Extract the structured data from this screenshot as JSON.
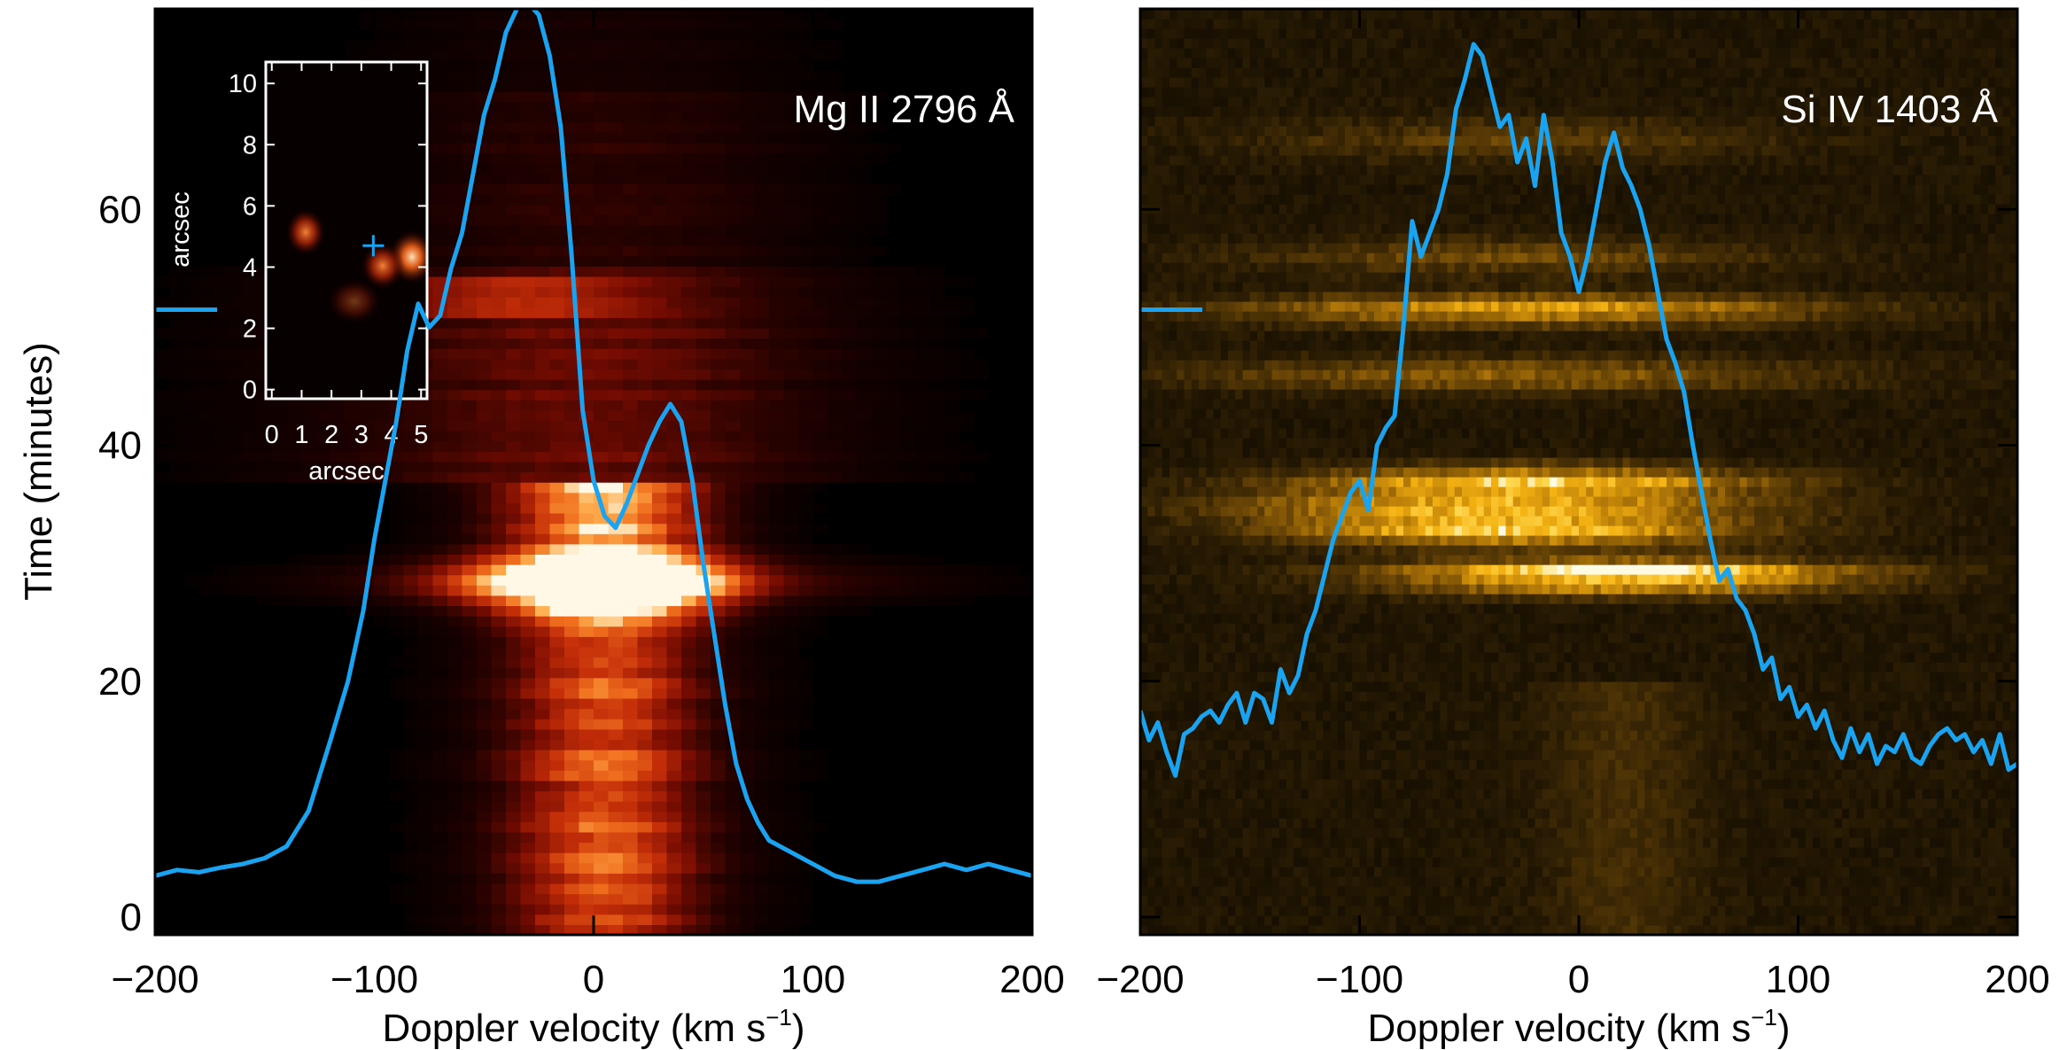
{
  "colors": {
    "profile": "#1aa3f0",
    "axis": "#000000",
    "panel_bg": "#000000",
    "inset_axis": "#ffffff"
  },
  "y_axis": {
    "label": "Time (minutes)",
    "ticks": [
      0,
      20,
      40,
      60
    ],
    "range": [
      -1.5,
      77
    ]
  },
  "chart_data": [
    {
      "type": "heatmap",
      "panel": "left",
      "colormap": "red-temperature",
      "annotation": "Mg II 2796 Å",
      "xlabel_main": "Doppler velocity (km s",
      "xlabel_sup": "−1",
      "xlabel_close": ")",
      "xlim": [
        -200,
        200
      ],
      "x_ticks": [
        -200,
        -100,
        0,
        100,
        200
      ],
      "x_tick_labels": [
        "−200",
        "−100",
        "0",
        "100",
        "200"
      ],
      "ylim": [
        -1.5,
        77
      ],
      "marker_time": 51.5,
      "series_line": {
        "x": [
          -200,
          -190,
          -180,
          -170,
          -160,
          -150,
          -140,
          -130,
          -120,
          -112,
          -105,
          -100,
          -95,
          -90,
          -85,
          -80,
          -75,
          -70,
          -65,
          -60,
          -55,
          -50,
          -45,
          -40,
          -35,
          -30,
          -25,
          -20,
          -15,
          -10,
          -5,
          0,
          5,
          10,
          15,
          20,
          25,
          30,
          35,
          40,
          45,
          50,
          55,
          60,
          65,
          70,
          75,
          80,
          90,
          100,
          110,
          120,
          130,
          140,
          150,
          160,
          170,
          180,
          190,
          200
        ],
        "y": [
          3.5,
          4.0,
          3.8,
          4.2,
          4.5,
          5.0,
          6.0,
          9.0,
          15.0,
          20.0,
          26.0,
          32.0,
          37.0,
          42.0,
          48.0,
          52.0,
          50.0,
          51.0,
          55.0,
          58.0,
          63.0,
          68.0,
          71.0,
          75.0,
          77.0,
          77.5,
          76.5,
          73.0,
          67.0,
          56.0,
          43.0,
          37.0,
          34.0,
          33.0,
          35.0,
          37.5,
          40.0,
          42.0,
          43.5,
          42.0,
          37.0,
          30.0,
          24.0,
          18.0,
          13.0,
          10.0,
          8.0,
          6.5,
          5.5,
          4.5,
          3.5,
          3.0,
          3.0,
          3.5,
          4.0,
          4.5,
          4.0,
          4.5,
          4.0,
          3.5
        ]
      },
      "inset": {
        "type": "heatmap",
        "xlabel": "arcsec",
        "ylabel": "arcsec",
        "xlim": [
          -0.2,
          5.2
        ],
        "ylim": [
          -0.3,
          10.7
        ],
        "x_ticks": [
          0,
          1,
          2,
          3,
          4,
          5
        ],
        "y_ticks": [
          0,
          2,
          4,
          6,
          8,
          10
        ],
        "cross": {
          "x": 3.4,
          "y": 4.7
        }
      }
    },
    {
      "type": "heatmap",
      "panel": "right",
      "colormap": "yellow",
      "annotation": "Si IV 1403 Å",
      "xlabel_main": "Doppler velocity (km s",
      "xlabel_sup": "−1",
      "xlabel_close": ")",
      "xlim": [
        -200,
        200
      ],
      "x_ticks": [
        -200,
        -100,
        0,
        100,
        200
      ],
      "x_tick_labels": [
        "−200",
        "−100",
        "0",
        "100",
        "200"
      ],
      "ylim": [
        -1.5,
        77
      ],
      "marker_time": 51.5,
      "series_line": {
        "x": [
          -200,
          -196,
          -192,
          -188,
          -184,
          -180,
          -176,
          -172,
          -168,
          -164,
          -160,
          -156,
          -152,
          -148,
          -144,
          -140,
          -136,
          -132,
          -128,
          -124,
          -120,
          -116,
          -112,
          -108,
          -104,
          -100,
          -96,
          -92,
          -88,
          -84,
          -80,
          -76,
          -72,
          -68,
          -64,
          -60,
          -56,
          -52,
          -48,
          -44,
          -40,
          -36,
          -32,
          -28,
          -24,
          -20,
          -16,
          -12,
          -8,
          -4,
          0,
          4,
          8,
          12,
          16,
          20,
          24,
          28,
          32,
          36,
          40,
          44,
          48,
          52,
          56,
          60,
          64,
          68,
          72,
          76,
          80,
          84,
          88,
          92,
          96,
          100,
          104,
          108,
          112,
          116,
          120,
          124,
          128,
          132,
          136,
          140,
          144,
          148,
          152,
          156,
          160,
          164,
          168,
          172,
          176,
          180,
          184,
          188,
          192,
          196,
          200
        ],
        "y": [
          17.5,
          15.0,
          16.5,
          14.0,
          12.0,
          15.5,
          16.0,
          17.0,
          17.5,
          16.5,
          18.0,
          19.0,
          16.5,
          19.0,
          18.5,
          16.5,
          21.0,
          19.0,
          20.5,
          24.0,
          26.0,
          29.0,
          32.0,
          34.0,
          36.0,
          37.0,
          34.5,
          40.0,
          41.5,
          42.5,
          50.0,
          59.0,
          56.0,
          58.0,
          60.0,
          63.0,
          68.5,
          71.0,
          74.0,
          73.0,
          70.0,
          67.0,
          68.0,
          64.0,
          66.0,
          62.0,
          68.0,
          64.0,
          58.0,
          56.0,
          53.0,
          56.0,
          60.0,
          64.0,
          66.5,
          63.5,
          62.0,
          60.0,
          57.0,
          53.0,
          49.0,
          47.0,
          44.5,
          40.0,
          36.0,
          32.0,
          28.5,
          29.5,
          27.0,
          26.0,
          24.0,
          21.0,
          22.0,
          18.5,
          19.5,
          17.0,
          18.0,
          16.0,
          17.5,
          15.0,
          13.5,
          16.0,
          14.0,
          15.5,
          13.0,
          14.5,
          14.0,
          15.5,
          13.5,
          13.0,
          14.5,
          15.5,
          16.0,
          15.0,
          15.5,
          14.0,
          15.0,
          13.0,
          15.5,
          12.5,
          13.0
        ]
      }
    }
  ]
}
